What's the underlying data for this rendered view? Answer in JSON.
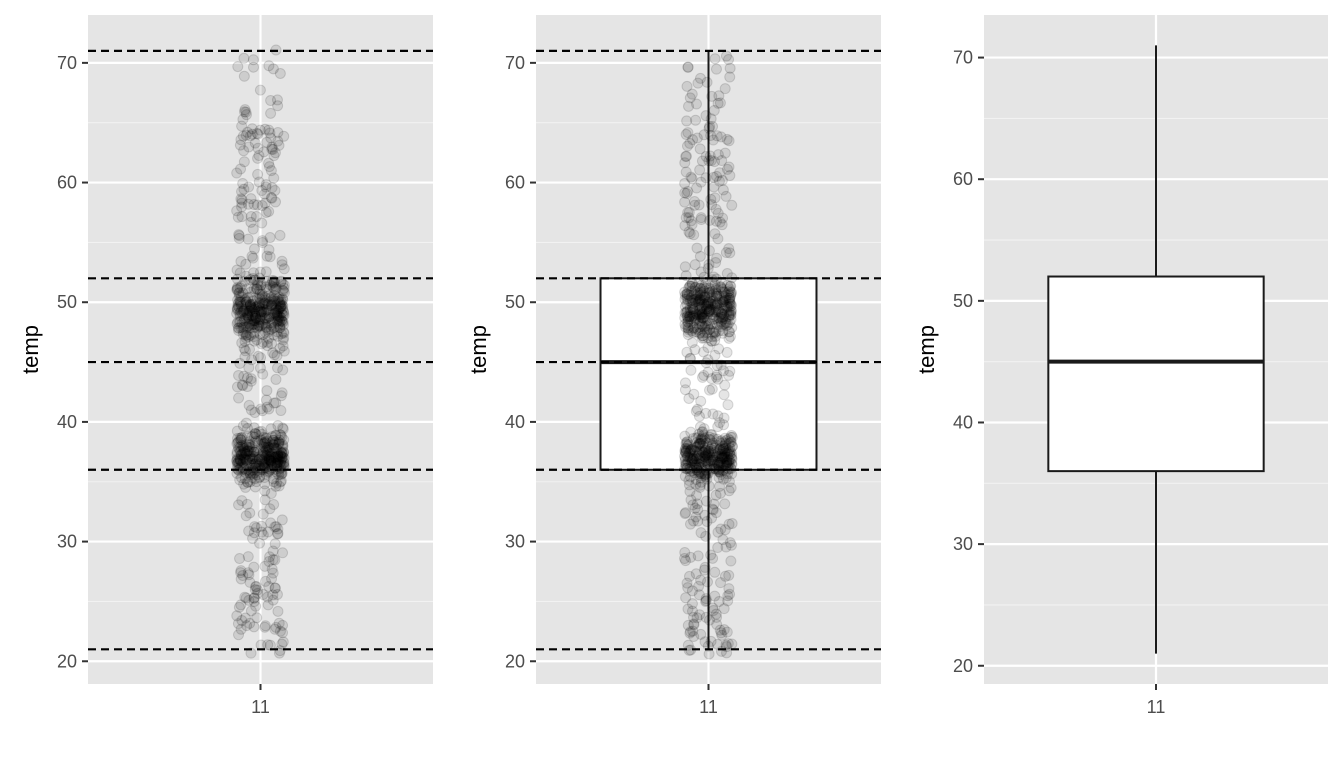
{
  "colors": {
    "panel_background": "#e5e5e5",
    "grid_major": "#ffffff",
    "grid_minor": "#f2f2f2",
    "tick_label": "#4d4d4d",
    "axis_title": "#000000",
    "points": "#000000",
    "box_fill": "#ffffff",
    "box_stroke": "#1a1a1a",
    "reference_lines": "#000000"
  },
  "chart_data": [
    {
      "type": "scatter",
      "x_category": "11",
      "ylabel": "temp",
      "xlabel": "",
      "ylim": [
        18.1,
        74.0
      ],
      "y_ticks": [
        20,
        30,
        40,
        50,
        60,
        70
      ],
      "grid": true,
      "jitter_points": {
        "count": 900,
        "y_min": 20.6,
        "y_max": 71.6,
        "dense_bands": [
          [
            34,
            40
          ],
          [
            46,
            53
          ]
        ]
      },
      "reference_lines": [
        {
          "y": 21,
          "style": "dashed"
        },
        {
          "y": 36,
          "style": "dashed"
        },
        {
          "y": 45,
          "style": "dashed"
        },
        {
          "y": 52,
          "style": "dashed"
        },
        {
          "y": 71,
          "style": "dashed"
        }
      ]
    },
    {
      "type": "box",
      "x_category": "11",
      "ylabel": "temp",
      "xlabel": "",
      "ylim": [
        18.1,
        74.0
      ],
      "y_ticks": [
        20,
        30,
        40,
        50,
        60,
        70
      ],
      "grid": true,
      "box": {
        "min": 21,
        "q1": 36,
        "median": 45,
        "q3": 52,
        "max": 71
      },
      "jitter_points": {
        "count": 900,
        "y_min": 20.6,
        "y_max": 71.2,
        "dense_bands": [
          [
            34,
            40
          ],
          [
            46,
            53
          ]
        ]
      },
      "reference_lines": [
        {
          "y": 21,
          "style": "dashed"
        },
        {
          "y": 36,
          "style": "dashed"
        },
        {
          "y": 45,
          "style": "dashed"
        },
        {
          "y": 52,
          "style": "dashed"
        },
        {
          "y": 71,
          "style": "dashed"
        }
      ]
    },
    {
      "type": "box",
      "x_category": "11",
      "ylabel": "temp",
      "xlabel": "",
      "ylim": [
        18.5,
        73.5
      ],
      "y_ticks": [
        20,
        30,
        40,
        50,
        60,
        70
      ],
      "grid": true,
      "box": {
        "min": 21,
        "q1": 36,
        "median": 45,
        "q3": 52,
        "max": 71
      },
      "reference_lines": []
    }
  ]
}
